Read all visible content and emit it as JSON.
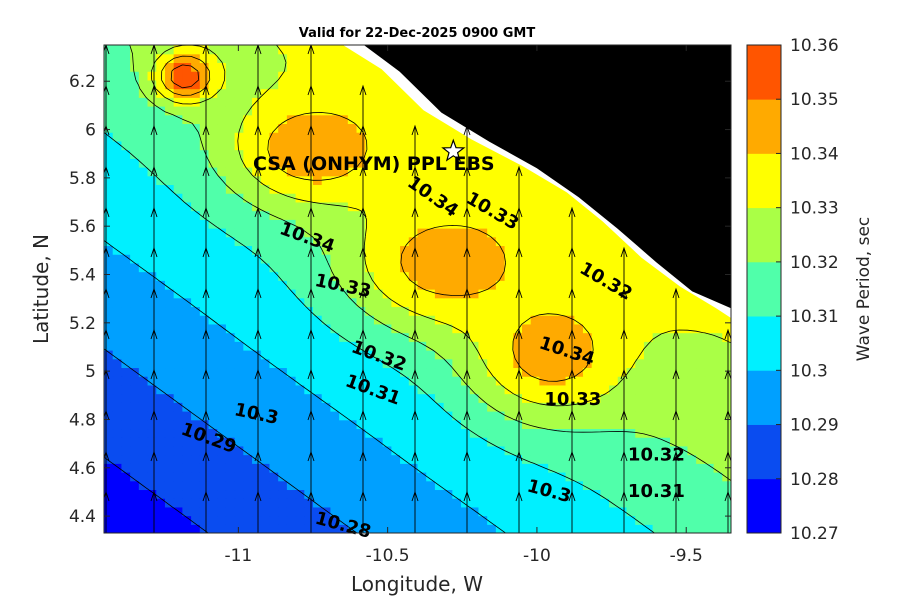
{
  "chart_data": {
    "type": "contour",
    "title": "Valid for 22-Dec-2025 0900 GMT",
    "xlabel": "Longitude, W",
    "ylabel": "Latitude, N",
    "colorbar_label": "Wave Period, sec",
    "xlim": [
      -11.45,
      -9.35
    ],
    "ylim": [
      4.33,
      6.35
    ],
    "x_ticks": [
      -11,
      -10.5,
      -10,
      -9.5
    ],
    "x_tick_labels": [
      "-11",
      "-10.5",
      "-10",
      "-9.5"
    ],
    "y_ticks": [
      4.4,
      4.6,
      4.8,
      5.0,
      5.2,
      5.4,
      5.6,
      5.8,
      6.0,
      6.2
    ],
    "y_tick_labels": [
      "4.4",
      "4.6",
      "4.8",
      "5",
      "5.2",
      "5.4",
      "5.6",
      "5.8",
      "6",
      "6.2"
    ],
    "levels": [
      10.27,
      10.28,
      10.29,
      10.3,
      10.31,
      10.32,
      10.33,
      10.34,
      10.35,
      10.36
    ],
    "level_labels": [
      "10.27",
      "10.28",
      "10.29",
      "10.3",
      "10.31",
      "10.32",
      "10.33",
      "10.34",
      "10.35",
      "10.36"
    ],
    "level_colors": [
      "#0000ff",
      "#0a4cf0",
      "#00a0ff",
      "#00f0ff",
      "#50ffaa",
      "#aaff46",
      "#ffff00",
      "#ffaa00",
      "#ff5500"
    ],
    "contour_labels": [
      {
        "text": "10.34",
        "lon": -10.35,
        "lat": 5.72,
        "angle": 35
      },
      {
        "text": "10.33",
        "lon": -10.15,
        "lat": 5.66,
        "angle": 30
      },
      {
        "text": "10.34",
        "lon": -10.77,
        "lat": 5.55,
        "angle": 20
      },
      {
        "text": "10.33",
        "lon": -10.65,
        "lat": 5.35,
        "angle": 12
      },
      {
        "text": "10.32",
        "lon": -9.77,
        "lat": 5.37,
        "angle": 30
      },
      {
        "text": "10.34",
        "lon": -9.9,
        "lat": 5.08,
        "angle": 18
      },
      {
        "text": "10.32",
        "lon": -10.53,
        "lat": 5.06,
        "angle": 20
      },
      {
        "text": "10.31",
        "lon": -10.55,
        "lat": 4.92,
        "angle": 20
      },
      {
        "text": "10.33",
        "lon": -9.88,
        "lat": 4.88,
        "angle": 0
      },
      {
        "text": "10.3",
        "lon": -10.94,
        "lat": 4.82,
        "angle": 12
      },
      {
        "text": "10.29",
        "lon": -11.1,
        "lat": 4.72,
        "angle": 20
      },
      {
        "text": "10.32",
        "lon": -9.6,
        "lat": 4.65,
        "angle": 0
      },
      {
        "text": "10.31",
        "lon": -9.6,
        "lat": 4.5,
        "angle": 0
      },
      {
        "text": "10.3",
        "lon": -9.96,
        "lat": 4.5,
        "angle": 15
      },
      {
        "text": "10.28",
        "lon": -10.65,
        "lat": 4.36,
        "angle": 15
      }
    ],
    "site": {
      "name": "CSA (ONHYM) PPL EBS",
      "lon": -10.28,
      "lat": 5.91
    },
    "arrow_direction": "north",
    "land_color": "#000000"
  }
}
